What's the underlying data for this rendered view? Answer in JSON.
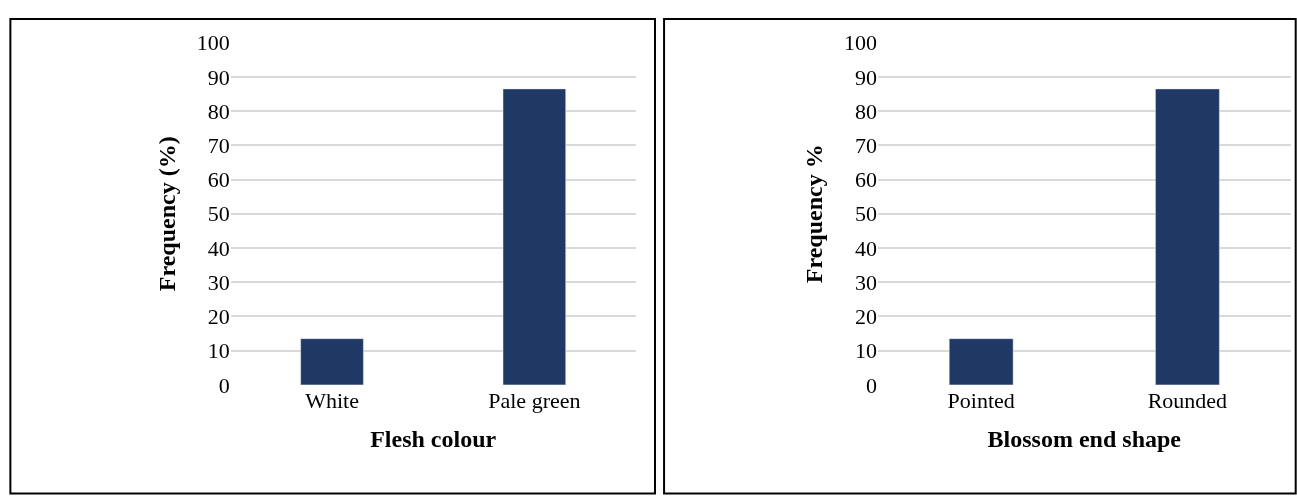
{
  "chart_data": [
    {
      "type": "bar",
      "xlabel": "Flesh colour",
      "ylabel": "Frequency (%)",
      "categories": [
        "White",
        "Pale green"
      ],
      "values": [
        13.5,
        86.5
      ],
      "color": "#203864",
      "ylim": [
        0,
        100
      ],
      "yticks": [
        0,
        10,
        20,
        30,
        40,
        50,
        60,
        70,
        80,
        90,
        100
      ],
      "grid": "y"
    },
    {
      "type": "bar",
      "xlabel": "Blossom end shape",
      "ylabel": "Frequency %",
      "categories": [
        "Pointed",
        "Rounded"
      ],
      "values": [
        13.5,
        86.5
      ],
      "color": "#203864",
      "ylim": [
        0,
        100
      ],
      "yticks": [
        0,
        10,
        20,
        30,
        40,
        50,
        60,
        70,
        80,
        90,
        100
      ],
      "grid": "y"
    }
  ]
}
